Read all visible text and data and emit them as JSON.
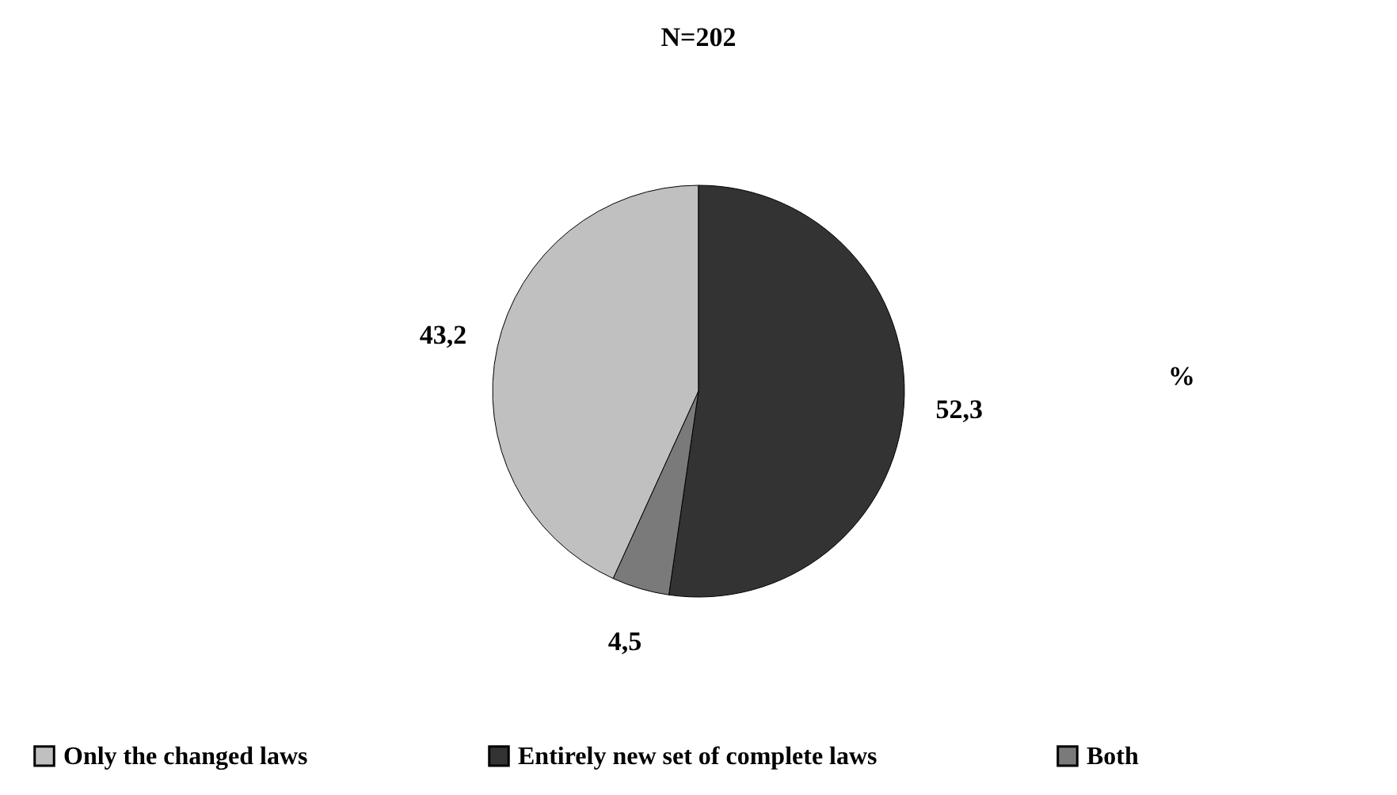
{
  "chart_data": {
    "type": "pie",
    "title": "N=202",
    "categories": [
      "Only the changed laws",
      "Entirely new set of complete laws",
      "Both"
    ],
    "values": [
      43.2,
      52.3,
      4.5
    ],
    "value_labels": [
      "43,2",
      "52,3",
      "4,5"
    ],
    "colors": [
      "#c0c0c0",
      "#333333",
      "#7a7a7a"
    ],
    "annotations": [
      "%"
    ],
    "legend": "bottom"
  }
}
